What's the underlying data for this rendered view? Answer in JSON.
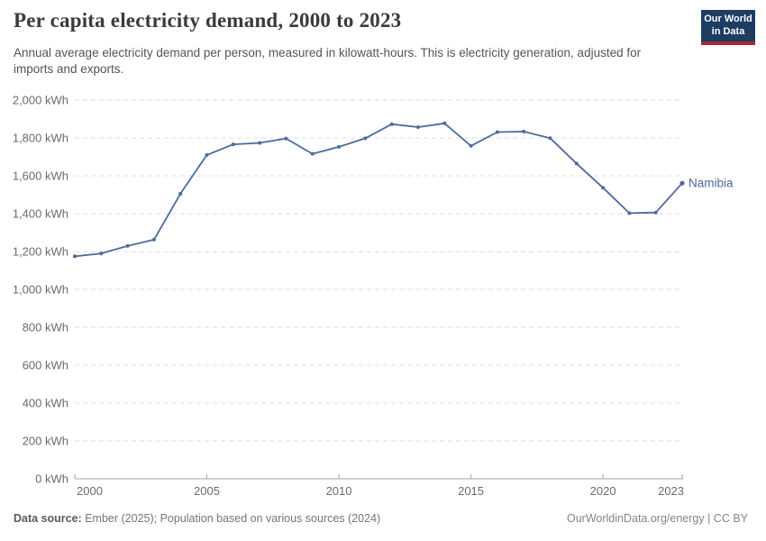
{
  "header": {
    "title": "Per capita electricity demand, 2000 to 2023",
    "subtitle": "Annual average electricity demand per person, measured in kilowatt-hours. This is electricity generation, adjusted for imports and exports.",
    "logo": {
      "line1": "Our World",
      "line2": "in Data"
    }
  },
  "chart_data": {
    "type": "line",
    "title": "Per capita electricity demand, 2000 to 2023",
    "entity": "Namibia",
    "unit": "kWh",
    "x": [
      2000,
      2001,
      2002,
      2003,
      2004,
      2005,
      2006,
      2007,
      2008,
      2009,
      2010,
      2011,
      2012,
      2013,
      2014,
      2015,
      2016,
      2017,
      2018,
      2019,
      2020,
      2021,
      2022,
      2023
    ],
    "series": [
      {
        "name": "Namibia",
        "color": "#4C6A9C",
        "values": [
          1175,
          1190,
          1230,
          1263,
          1505,
          1710,
          1766,
          1774,
          1797,
          1716,
          1753,
          1798,
          1873,
          1857,
          1877,
          1758,
          1831,
          1834,
          1799,
          1665,
          1537,
          1403,
          1406,
          1561
        ]
      }
    ],
    "xlabel": "",
    "ylabel": "",
    "ylim": [
      0,
      2000
    ],
    "yticks": [
      0,
      200,
      400,
      600,
      800,
      1000,
      1200,
      1400,
      1600,
      1800,
      2000
    ],
    "ytick_suffix": " kWh",
    "xticks": [
      2000,
      2005,
      2010,
      2015,
      2020,
      2023
    ],
    "grid": "horizontal-dashed",
    "legend": "end-of-line-label"
  },
  "footer": {
    "source_label": "Data source:",
    "source_text": " Ember (2025); Population based on various sources (2024)",
    "credit": "OurWorldinData.org/energy | CC BY"
  },
  "colors": {
    "accent_line": "#4C6A9C",
    "logo_bg": "#1D3D63",
    "logo_accent": "#A52A32",
    "grid": "#DCDCDC",
    "axis": "#A5A5A5",
    "tick_text": "#6B6B6B",
    "title_text": "#3A3A3A",
    "subtitle_text": "#555555"
  }
}
